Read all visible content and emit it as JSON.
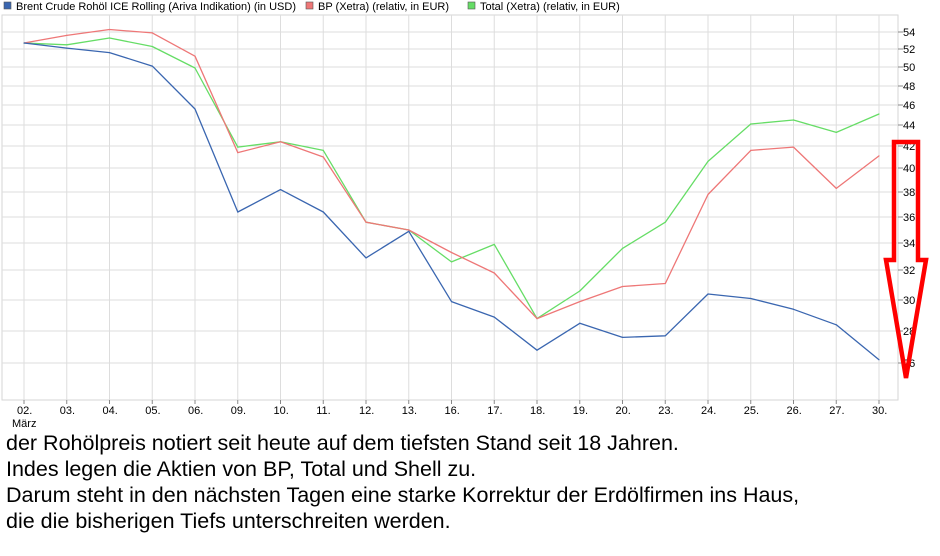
{
  "chart_data": {
    "type": "line",
    "categories": [
      "02.",
      "03.",
      "04.",
      "05.",
      "06.",
      "09.",
      "10.",
      "11.",
      "12.",
      "13.",
      "16.",
      "17.",
      "18.",
      "19.",
      "20.",
      "23.",
      "24.",
      "25.",
      "26.",
      "27.",
      "30."
    ],
    "x_sublabel": "März",
    "ylim": [
      24,
      56
    ],
    "yticks": [
      26,
      28,
      30,
      32,
      34,
      36,
      38,
      40,
      42,
      44,
      46,
      48,
      50,
      52,
      54
    ],
    "grid": true,
    "legend_position": "top-left",
    "series": [
      {
        "name": "Brent Crude Rohöl ICE Rolling (Ariva Indikation) (in USD)",
        "color": "#3a66b0",
        "values": [
          52.7,
          52.1,
          51.6,
          50.1,
          45.6,
          36.4,
          38.2,
          36.4,
          32.9,
          34.9,
          29.9,
          28.9,
          26.8,
          28.5,
          27.6,
          27.7,
          30.4,
          30.1,
          29.4,
          28.4,
          26.2
        ]
      },
      {
        "name": "BP (Xetra) (relativ, in EUR)",
        "color": "#ee7777",
        "values": [
          52.7,
          53.6,
          54.3,
          53.9,
          51.2,
          41.4,
          42.4,
          41.0,
          35.6,
          35.0,
          33.3,
          31.8,
          28.8,
          29.9,
          30.9,
          31.1,
          37.8,
          41.6,
          41.9,
          38.3,
          41.1
        ]
      },
      {
        "name": "Total (Xetra) (relativ, in EUR)",
        "color": "#66dd66",
        "values": [
          52.7,
          52.5,
          53.3,
          52.3,
          49.9,
          41.9,
          42.4,
          41.6,
          35.6,
          35.0,
          32.6,
          33.9,
          28.8,
          30.6,
          33.6,
          35.6,
          40.6,
          44.1,
          44.5,
          43.3,
          45.1
        ]
      }
    ],
    "annotation": {
      "type": "arrow-down",
      "color": "#ff0000"
    }
  },
  "caption": [
    "der Rohölpreis notiert seit heute auf dem tiefsten Stand seit 18 Jahren.",
    "Indes legen die Aktien von BP, Total und Shell zu.",
    "Darum steht in den nächsten Tagen eine starke Korrektur der Erdölfirmen ins Haus,",
    "die die bisherigen Tiefs unterschreiten werden."
  ]
}
